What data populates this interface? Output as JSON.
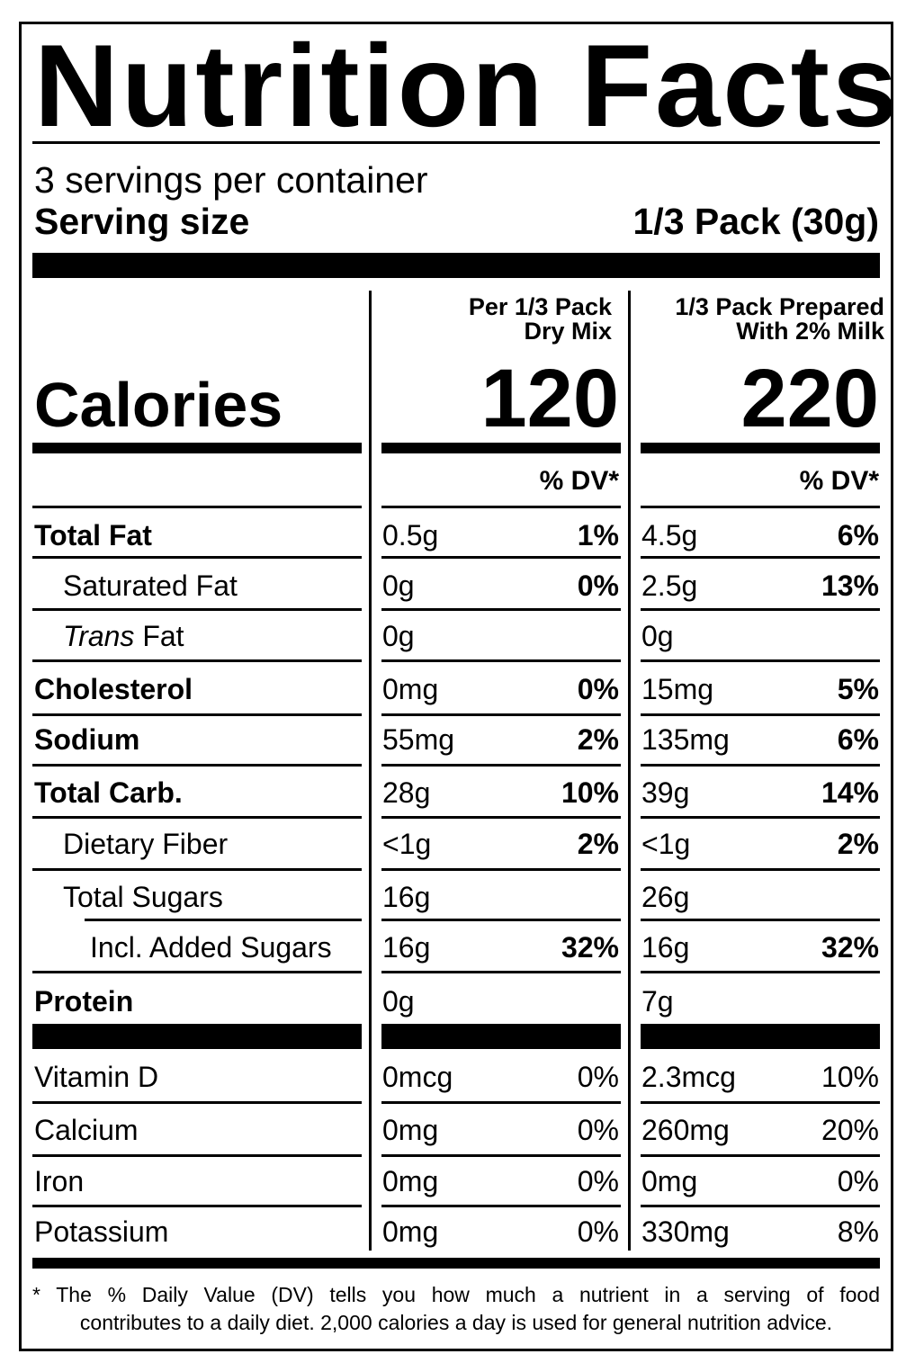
{
  "title": "Nutrition Facts",
  "servings_per_container": "3 servings per container",
  "serving_size_label": "Serving size",
  "serving_size_value": "1/3 Pack (30g)",
  "columns": [
    {
      "header_line1": "Per 1/3 Pack",
      "header_line2": "Dry Mix",
      "calories": "120",
      "dv_header": "% DV*"
    },
    {
      "header_line1": "1/3 Pack Prepared",
      "header_line2": "With 2% Milk",
      "calories": "220",
      "dv_header": "% DV*"
    }
  ],
  "calories_label": "Calories",
  "nutrients": [
    {
      "name": "Total Fat",
      "bold": true,
      "c1": "0.5g",
      "p1": "1%",
      "c2": "4.5g",
      "p2": "6%"
    },
    {
      "name": "Saturated Fat",
      "bold": false,
      "c1": "0g",
      "p1": "0%",
      "c2": "2.5g",
      "p2": "13%"
    },
    {
      "name_italic": "Trans",
      "name_rest": " Fat",
      "bold": false,
      "c1": "0g",
      "p1": "",
      "c2": "0g",
      "p2": ""
    },
    {
      "name": "Cholesterol",
      "bold": true,
      "c1": "0mg",
      "p1": "0%",
      "c2": "15mg",
      "p2": "5%"
    },
    {
      "name": "Sodium",
      "bold": true,
      "c1": "55mg",
      "p1": "2%",
      "c2": "135mg",
      "p2": "6%"
    },
    {
      "name": "Total Carb.",
      "bold": true,
      "c1": "28g",
      "p1": "10%",
      "c2": "39g",
      "p2": "14%"
    },
    {
      "name": "Dietary Fiber",
      "bold": false,
      "c1": "<1g",
      "p1": "2%",
      "c2": "<1g",
      "p2": "2%"
    },
    {
      "name": "Total Sugars",
      "bold": false,
      "c1": "16g",
      "p1": "",
      "c2": "26g",
      "p2": ""
    },
    {
      "name": "Incl. Added Sugars",
      "bold": false,
      "c1": "16g",
      "p1": "32%",
      "c2": "16g",
      "p2": "32%"
    },
    {
      "name": "Protein",
      "bold": true,
      "c1": "0g",
      "p1": "",
      "c2": "7g",
      "p2": ""
    }
  ],
  "vitamins": [
    {
      "name": "Vitamin D",
      "c1": "0mcg",
      "p1": "0%",
      "c2": "2.3mcg",
      "p2": "10%"
    },
    {
      "name": "Calcium",
      "c1": "0mg",
      "p1": "0%",
      "c2": "260mg",
      "p2": "20%"
    },
    {
      "name": "Iron",
      "c1": "0mg",
      "p1": "0%",
      "c2": "0mg",
      "p2": "0%"
    },
    {
      "name": "Potassium",
      "c1": "0mg",
      "p1": "0%",
      "c2": "330mg",
      "p2": "8%"
    }
  ],
  "footnote_line1": "* The % Daily Value (DV) tells you how much a nutrient in a serving of food",
  "footnote_line2": "contributes to a daily diet. 2,000 calories a day is used for general nutrition advice."
}
